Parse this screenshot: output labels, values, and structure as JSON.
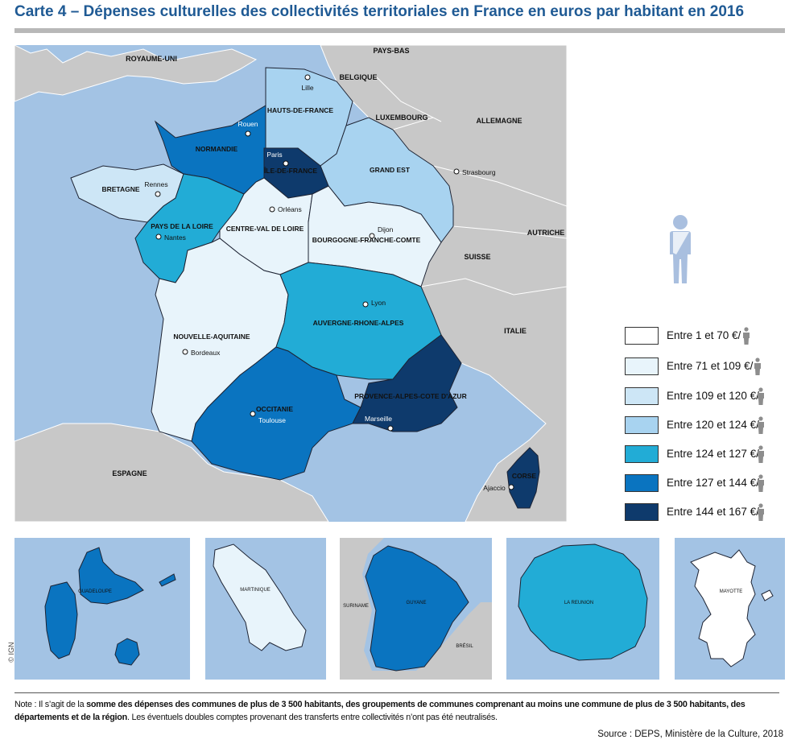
{
  "title": "Carte 4 – Dépenses culturelles des collectivités territoriales en France en euros par habitant en 2016",
  "colors": {
    "sea": "#a3c3e4",
    "land_foreign": "#c8c8c8",
    "border": "#1d2333",
    "class1": "#ffffff",
    "class2": "#e8f4fb",
    "class3": "#cde6f6",
    "class4": "#a8d3f0",
    "class5": "#22acd6",
    "class6": "#0a74c0",
    "class7": "#0e3a6c",
    "person": "#a9bfdf",
    "legend_person": "#8d8d8d"
  },
  "countries": [
    {
      "id": "uk",
      "label": "ROYAUME-UNI"
    },
    {
      "id": "nl",
      "label": "PAYS-BAS"
    },
    {
      "id": "be",
      "label": "BELGIQUE"
    },
    {
      "id": "lu",
      "label": "LUXEMBOURG"
    },
    {
      "id": "de",
      "label": "ALLEMAGNE"
    },
    {
      "id": "at",
      "label": "AUTRICHE"
    },
    {
      "id": "ch",
      "label": "SUISSE"
    },
    {
      "id": "it",
      "label": "ITALIE"
    },
    {
      "id": "es",
      "label": "ESPAGNE"
    }
  ],
  "regions": [
    {
      "id": "hdf",
      "label": "HAUTS-DE-FRANCE",
      "class": 4
    },
    {
      "id": "nor",
      "label": "NORMANDIE",
      "class": 6
    },
    {
      "id": "idf",
      "label": "ÎLE-DE-FRANCE",
      "class": 7
    },
    {
      "id": "ges",
      "label": "GRAND EST",
      "class": 4
    },
    {
      "id": "bre",
      "label": "BRETAGNE",
      "class": 3
    },
    {
      "id": "pdl",
      "label": "PAYS DE LA LOIRE",
      "class": 5
    },
    {
      "id": "cvl",
      "label": "CENTRE-VAL DE LOIRE",
      "class": 2
    },
    {
      "id": "bfc",
      "label": "BOURGOGNE-FRANCHE-COMTE",
      "class": 2
    },
    {
      "id": "naq",
      "label": "NOUVELLE-AQUITAINE",
      "class": 2
    },
    {
      "id": "ara",
      "label": "AUVERGNE-RHONE-ALPES",
      "class": 5
    },
    {
      "id": "occ",
      "label": "OCCITANIE",
      "class": 6
    },
    {
      "id": "pac",
      "label": "PROVENCE-ALPES-COTE D'AZUR",
      "class": 7
    },
    {
      "id": "cor",
      "label": "CORSE",
      "class": 7
    }
  ],
  "cities": [
    {
      "id": "lille",
      "label": "Lille"
    },
    {
      "id": "rouen",
      "label": "Rouen"
    },
    {
      "id": "paris",
      "label": "Paris"
    },
    {
      "id": "strasbourg",
      "label": "Strasbourg"
    },
    {
      "id": "rennes",
      "label": "Rennes"
    },
    {
      "id": "orleans",
      "label": "Orléans"
    },
    {
      "id": "nantes",
      "label": "Nantes"
    },
    {
      "id": "dijon",
      "label": "Dijon"
    },
    {
      "id": "lyon",
      "label": "Lyon"
    },
    {
      "id": "bordeaux",
      "label": "Bordeaux"
    },
    {
      "id": "toulouse",
      "label": "Toulouse"
    },
    {
      "id": "marseille",
      "label": "Marseille"
    },
    {
      "id": "ajaccio",
      "label": "Ajaccio"
    }
  ],
  "insets": [
    {
      "id": "guadeloupe",
      "label": "GUADELOUPE",
      "class": 6
    },
    {
      "id": "martinique",
      "label": "MARTINIQUE",
      "class": 2
    },
    {
      "id": "guyane",
      "label": "GUYANE",
      "class": 6,
      "neighbors": [
        "SURINAME",
        "BRÉSIL"
      ]
    },
    {
      "id": "reunion",
      "label": "LA REUNION",
      "class": 5
    },
    {
      "id": "mayotte",
      "label": "MAYOTTE",
      "class": 1
    }
  ],
  "legend": [
    {
      "label": "Entre 1 et 70 €/",
      "class": 1
    },
    {
      "label": "Entre 71 et 109 €/",
      "class": 2
    },
    {
      "label": "Entre 109 et 120 €/",
      "class": 3
    },
    {
      "label": "Entre 120 et 124 €/",
      "class": 4
    },
    {
      "label": "Entre 124 et 127 €/",
      "class": 5
    },
    {
      "label": "Entre 127 et 144 €/",
      "class": 6
    },
    {
      "label": "Entre 144 et 167 €/",
      "class": 7
    }
  ],
  "copyright": "© IGN",
  "note": {
    "prefix": "Note : Il s’agit de la ",
    "bold": "somme des dépenses des communes de plus de 3 500 habitants, des groupements de communes comprenant au moins une commune de plus de 3 500 habitants, des départements et de la région",
    "suffix": ". Les éventuels doubles comptes provenant des transferts entre collectivités n’ont pas été neutralisés."
  },
  "source": "Source : DEPS, Ministère de la Culture, 2018"
}
